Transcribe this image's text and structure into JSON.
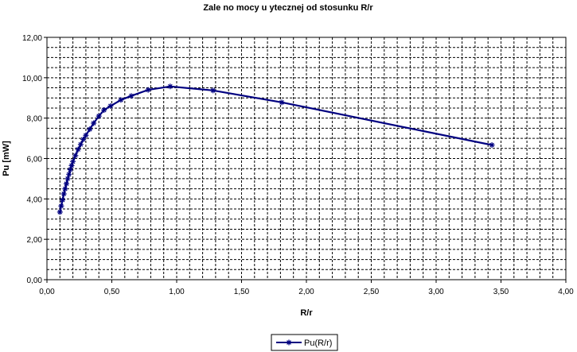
{
  "chart_data": {
    "type": "scatter",
    "title": "Zale   no      mocy u  ytecznej od stosunku R/r",
    "xlabel": "R/r",
    "ylabel": "Pu [mW]",
    "xlim": [
      0,
      4
    ],
    "ylim": [
      0,
      12
    ],
    "x_ticks": [
      "0,00",
      "0,50",
      "1,00",
      "1,50",
      "2,00",
      "2,50",
      "3,00",
      "3,50",
      "4,00"
    ],
    "y_ticks": [
      "0,00",
      "2,00",
      "4,00",
      "6,00",
      "8,00",
      "10,00",
      "12,00"
    ],
    "grid": true,
    "legend_position": "bottom",
    "series": [
      {
        "name": "Pu(R/r)",
        "color": "#000080",
        "marker": "star",
        "x": [
          0.1,
          0.11,
          0.12,
          0.13,
          0.14,
          0.15,
          0.16,
          0.17,
          0.18,
          0.19,
          0.2,
          0.22,
          0.24,
          0.26,
          0.28,
          0.3,
          0.33,
          0.36,
          0.4,
          0.44,
          0.49,
          0.57,
          0.65,
          0.78,
          0.95,
          1.28,
          1.81,
          3.43
        ],
        "y": [
          3.35,
          3.65,
          3.95,
          4.25,
          4.5,
          4.75,
          5.0,
          5.22,
          5.45,
          5.65,
          5.85,
          6.15,
          6.45,
          6.7,
          6.95,
          7.15,
          7.45,
          7.75,
          8.1,
          8.4,
          8.6,
          8.9,
          9.1,
          9.4,
          9.57,
          9.37,
          8.78,
          6.67
        ]
      }
    ]
  }
}
